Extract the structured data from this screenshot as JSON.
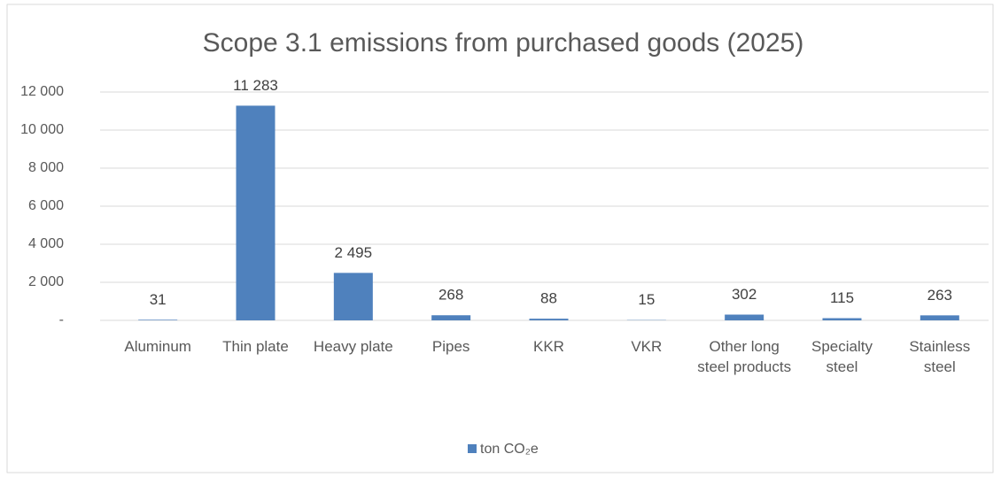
{
  "chart_data": {
    "type": "bar",
    "title": "Scope 3.1 emissions from purchased goods (2025)",
    "categories": [
      "Aluminum",
      "Thin plate",
      "Heavy plate",
      "Pipes",
      "KKR",
      "VKR",
      "Other long steel products",
      "Specialty steel",
      "Stainless steel"
    ],
    "series": [
      {
        "name": "ton CO₂e",
        "color": "#4f81bd",
        "values": [
          31,
          11283,
          2495,
          268,
          88,
          15,
          302,
          115,
          263
        ],
        "value_labels": [
          "31",
          "11 283",
          "2 495",
          "268",
          "88",
          "15",
          "302",
          "115",
          "263"
        ]
      }
    ],
    "ylim": [
      0,
      12000
    ],
    "yticks": [
      {
        "value": 0,
        "label": "-"
      },
      {
        "value": 2000,
        "label": "2 000"
      },
      {
        "value": 4000,
        "label": "4 000"
      },
      {
        "value": 6000,
        "label": "6 000"
      },
      {
        "value": 8000,
        "label": "8 000"
      },
      {
        "value": 10000,
        "label": "10 000"
      },
      {
        "value": 12000,
        "label": "12 000"
      }
    ],
    "grid": true,
    "legend": "bottom"
  }
}
